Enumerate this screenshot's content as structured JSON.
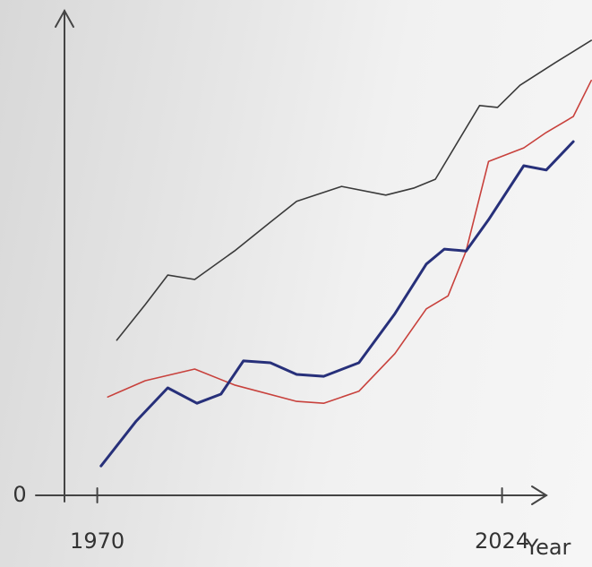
{
  "chart_data": {
    "type": "line",
    "x_label": "Year",
    "xlim": [
      1963,
      2036
    ],
    "xticks": [
      1970,
      2024
    ],
    "ylim": [
      0,
      100
    ],
    "yticks": [
      0
    ],
    "series": [
      {
        "color": "#3a3a3a",
        "x": [
          1972.6,
          1976.4,
          1979.4,
          1983,
          1988.3,
          1993.1,
          1996.6,
          2002.6,
          2008.5,
          2012.3,
          2015.1,
          2021,
          2023.4,
          2026.4,
          2031.1,
          2035.9
        ],
        "values": [
          32.2,
          39.6,
          45.7,
          44.8,
          50.7,
          56.7,
          61,
          64.1,
          62.3,
          63.8,
          65.6,
          80.9,
          80.5,
          85.1,
          89.8,
          94.4
        ]
      },
      {
        "color": "#c8413c",
        "x": [
          1971.4,
          1976.4,
          1983,
          1988.3,
          1996.6,
          2000.2,
          2004.9,
          2009.7,
          2013.9,
          2016.8,
          2019.2,
          2022.2,
          2026.9,
          2029.9,
          2033.5,
          2035.9
        ],
        "values": [
          20.4,
          23.8,
          26.2,
          22.9,
          19.5,
          19.1,
          21.6,
          29.4,
          38.7,
          41.4,
          50.7,
          69.3,
          72.1,
          75.3,
          78.6,
          86.1
        ]
      },
      {
        "color": "#27307a",
        "x": [
          1970.5,
          1975.2,
          1979.4,
          1983.3,
          1986.5,
          1989.5,
          1993.1,
          1996.6,
          2000.2,
          2004.9,
          2009.7,
          2013.9,
          2016.3,
          2019.2,
          2022.2,
          2026.9,
          2029.9,
          2033.5
        ],
        "values": [
          6.1,
          15.4,
          22.3,
          19.1,
          21,
          27.9,
          27.5,
          25.1,
          24.7,
          27.5,
          37.7,
          48,
          51.1,
          50.7,
          57.2,
          68.4,
          67.5,
          73.4
        ]
      }
    ]
  }
}
